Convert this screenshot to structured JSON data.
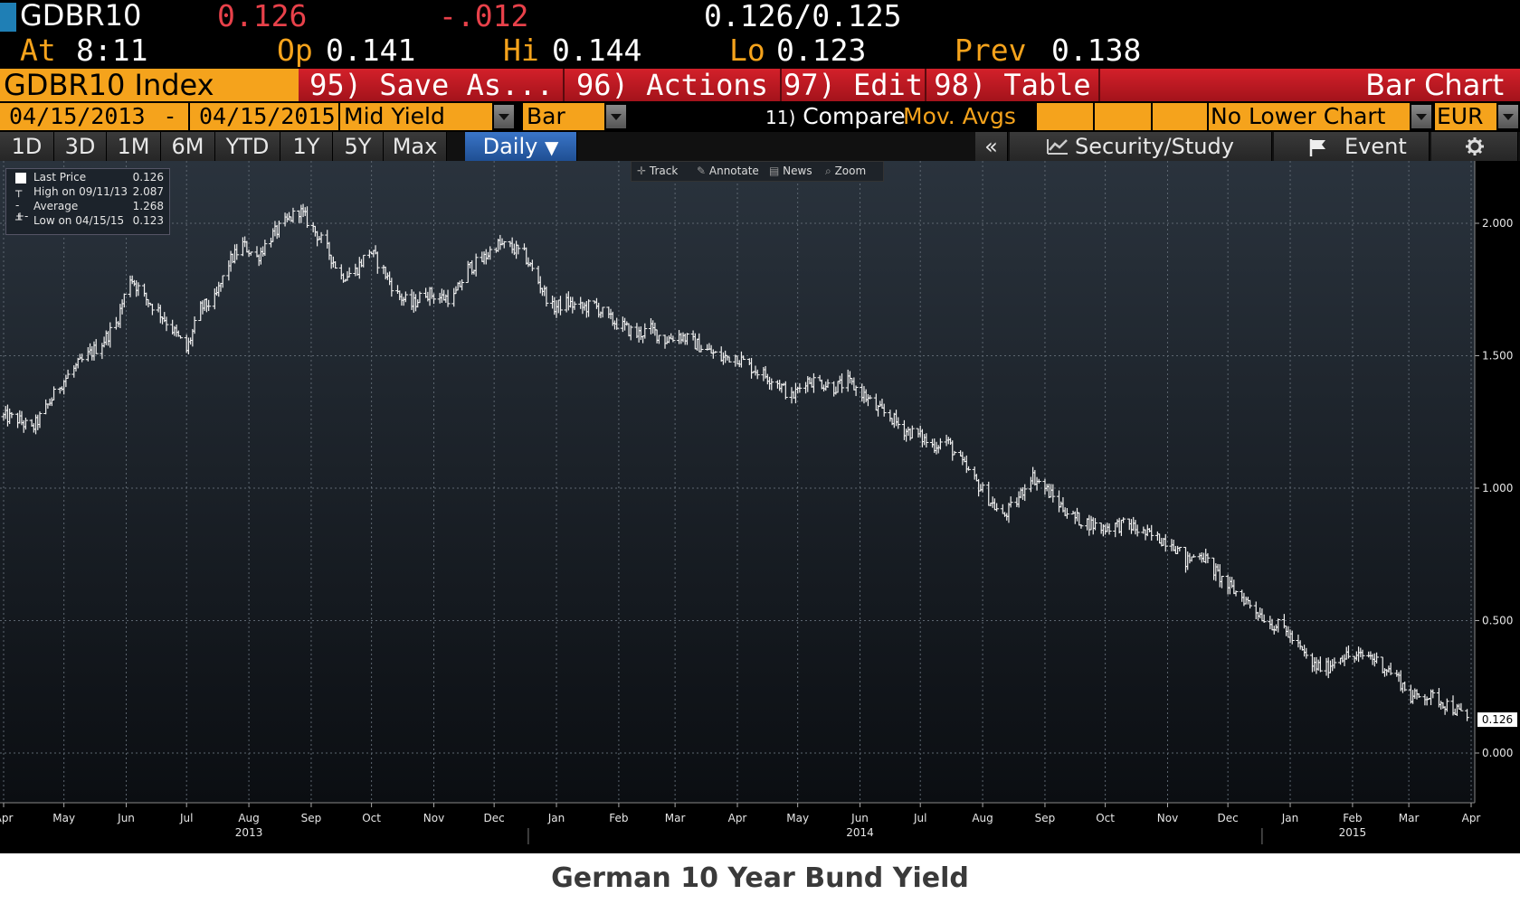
{
  "quote": {
    "ticker": "GDBR10",
    "last": "0.126",
    "change": "-.012",
    "bid_ask": "0.126/0.125",
    "at_label": "At",
    "time": "8:11",
    "open_label": "Op",
    "open": "0.141",
    "high_label": "Hi",
    "high": "0.144",
    "low_label": "Lo",
    "low": "0.123",
    "prev_label": "Prev",
    "prev": "0.138"
  },
  "toolbar": {
    "security": "GDBR10 Index",
    "save_as": "95) Save As...",
    "actions": "96) Actions",
    "edit": "97) Edit",
    "table": "98) Table",
    "view_title": "Bar Chart"
  },
  "settings": {
    "start_date": "04/15/2013",
    "date_sep": "-",
    "end_date": "04/15/2015",
    "field": "Mid Yield",
    "chart_type": "Bar",
    "compare_num": "11)",
    "compare_label": "Compare",
    "mov_avgs": "Mov. Avgs",
    "lower_chart": "No Lower Chart",
    "currency": "EUR"
  },
  "periods": [
    "1D",
    "3D",
    "1M",
    "6M",
    "YTD",
    "1Y",
    "5Y",
    "Max"
  ],
  "frequency": "Daily",
  "tools": {
    "collapse": "«",
    "security_study": "Security/Study",
    "event": "Event"
  },
  "chart_tools": [
    "Track",
    "Annotate",
    "News",
    "Zoom"
  ],
  "legend": [
    {
      "label": "Last Price",
      "value": "0.126"
    },
    {
      "label": "High on 09/11/13",
      "value": "2.087"
    },
    {
      "label": "Average",
      "value": "1.268"
    },
    {
      "label": "Low on 04/15/15",
      "value": "0.123"
    }
  ],
  "last_price_tag": "0.126",
  "caption": "German 10 Year Bund Yield",
  "colors": {
    "up": "#e8414a",
    "amber": "#f5a31c",
    "red_button": "#c8191f",
    "selected_tab": "#2a5ea8",
    "chart_bg_top": "#2a333d",
    "chart_bg_bottom": "#0b0e12"
  },
  "chart_data": {
    "type": "bar",
    "ylim": [
      0,
      2.25
    ],
    "yticks": [
      0.0,
      0.5,
      1.0,
      1.5,
      2.0
    ],
    "ytick_labels": [
      "0.000",
      "0.500",
      "1.000",
      "1.500",
      "2.000"
    ],
    "months": [
      {
        "label": "Apr",
        "date": "2013-04-15"
      },
      {
        "label": "May",
        "date": "2013-05-15"
      },
      {
        "label": "Jun",
        "date": "2013-06-15"
      },
      {
        "label": "Jul",
        "date": "2013-07-15"
      },
      {
        "label": "Aug",
        "date": "2013-08-15"
      },
      {
        "label": "Sep",
        "date": "2013-09-15"
      },
      {
        "label": "Oct",
        "date": "2013-10-15"
      },
      {
        "label": "Nov",
        "date": "2013-11-15"
      },
      {
        "label": "Dec",
        "date": "2013-12-15"
      },
      {
        "label": "Jan",
        "date": "2014-01-15"
      },
      {
        "label": "Feb",
        "date": "2014-02-15"
      },
      {
        "label": "Mar",
        "date": "2014-03-15"
      },
      {
        "label": "Apr",
        "date": "2014-04-15"
      },
      {
        "label": "May",
        "date": "2014-05-15"
      },
      {
        "label": "Jun",
        "date": "2014-06-15"
      },
      {
        "label": "Jul",
        "date": "2014-07-15"
      },
      {
        "label": "Aug",
        "date": "2014-08-15"
      },
      {
        "label": "Sep",
        "date": "2014-09-15"
      },
      {
        "label": "Oct",
        "date": "2014-10-15"
      },
      {
        "label": "Nov",
        "date": "2014-11-15"
      },
      {
        "label": "Dec",
        "date": "2014-12-15"
      },
      {
        "label": "Jan",
        "date": "2015-01-15"
      },
      {
        "label": "Feb",
        "date": "2015-02-15"
      },
      {
        "label": "Mar",
        "date": "2015-03-15"
      },
      {
        "label": "Apr",
        "date": "2015-04-15"
      }
    ],
    "years": [
      {
        "label": "2013",
        "date": "2013-08-15"
      },
      {
        "label": "2014",
        "date": "2014-06-15"
      },
      {
        "label": "2015",
        "date": "2015-02-15"
      }
    ],
    "x_start": "2013-04-15",
    "x_end": "2015-04-15",
    "series": [
      {
        "dates": [
          "2013-04-15",
          "2013-04-22",
          "2013-04-29",
          "2013-05-06",
          "2013-05-13",
          "2013-05-20",
          "2013-05-27",
          "2013-06-03",
          "2013-06-10",
          "2013-06-17",
          "2013-06-24",
          "2013-07-01",
          "2013-07-08",
          "2013-07-15",
          "2013-07-22",
          "2013-07-29",
          "2013-08-05",
          "2013-08-12",
          "2013-08-19",
          "2013-08-26",
          "2013-09-02",
          "2013-09-09",
          "2013-09-16",
          "2013-09-23",
          "2013-09-30",
          "2013-10-07",
          "2013-10-14",
          "2013-10-21",
          "2013-10-28",
          "2013-11-04",
          "2013-11-11",
          "2013-11-18",
          "2013-11-25",
          "2013-12-02",
          "2013-12-09",
          "2013-12-16",
          "2013-12-23",
          "2013-12-30",
          "2014-01-06",
          "2014-01-13",
          "2014-01-20",
          "2014-01-27",
          "2014-02-03",
          "2014-02-10",
          "2014-02-17",
          "2014-02-24",
          "2014-03-03",
          "2014-03-10",
          "2014-03-17",
          "2014-03-24",
          "2014-03-31",
          "2014-04-07",
          "2014-04-14",
          "2014-04-21",
          "2014-04-28",
          "2014-05-05",
          "2014-05-12",
          "2014-05-19",
          "2014-05-26",
          "2014-06-02",
          "2014-06-09",
          "2014-06-16",
          "2014-06-23",
          "2014-06-30",
          "2014-07-07",
          "2014-07-14",
          "2014-07-21",
          "2014-07-28",
          "2014-08-04",
          "2014-08-11",
          "2014-08-18",
          "2014-08-25",
          "2014-09-01",
          "2014-09-08",
          "2014-09-15",
          "2014-09-22",
          "2014-09-29",
          "2014-10-06",
          "2014-10-13",
          "2014-10-20",
          "2014-10-27",
          "2014-11-03",
          "2014-11-10",
          "2014-11-17",
          "2014-11-24",
          "2014-12-01",
          "2014-12-08",
          "2014-12-15",
          "2014-12-22",
          "2014-12-29",
          "2015-01-05",
          "2015-01-12",
          "2015-01-19",
          "2015-01-26",
          "2015-02-02",
          "2015-02-09",
          "2015-02-16",
          "2015-02-23",
          "2015-03-02",
          "2015-03-09",
          "2015-03-16",
          "2015-03-23",
          "2015-03-30",
          "2015-04-06",
          "2015-04-13"
        ],
        "values": [
          1.27,
          1.26,
          1.22,
          1.3,
          1.39,
          1.45,
          1.5,
          1.55,
          1.62,
          1.8,
          1.72,
          1.67,
          1.6,
          1.52,
          1.68,
          1.71,
          1.85,
          1.92,
          1.87,
          1.95,
          2.0,
          2.05,
          1.98,
          1.9,
          1.8,
          1.82,
          1.9,
          1.82,
          1.73,
          1.69,
          1.74,
          1.72,
          1.72,
          1.83,
          1.86,
          1.92,
          1.91,
          1.88,
          1.78,
          1.68,
          1.7,
          1.68,
          1.69,
          1.64,
          1.61,
          1.58,
          1.6,
          1.56,
          1.58,
          1.55,
          1.52,
          1.49,
          1.5,
          1.46,
          1.43,
          1.4,
          1.34,
          1.41,
          1.4,
          1.38,
          1.4,
          1.36,
          1.3,
          1.27,
          1.22,
          1.2,
          1.16,
          1.18,
          1.1,
          1.03,
          0.96,
          0.89,
          0.95,
          1.05,
          1.0,
          0.94,
          0.89,
          0.87,
          0.85,
          0.86,
          0.86,
          0.83,
          0.81,
          0.8,
          0.72,
          0.76,
          0.69,
          0.63,
          0.59,
          0.54,
          0.49,
          0.47,
          0.4,
          0.33,
          0.32,
          0.37,
          0.36,
          0.37,
          0.33,
          0.29,
          0.21,
          0.22,
          0.2,
          0.17,
          0.13
        ]
      }
    ]
  }
}
